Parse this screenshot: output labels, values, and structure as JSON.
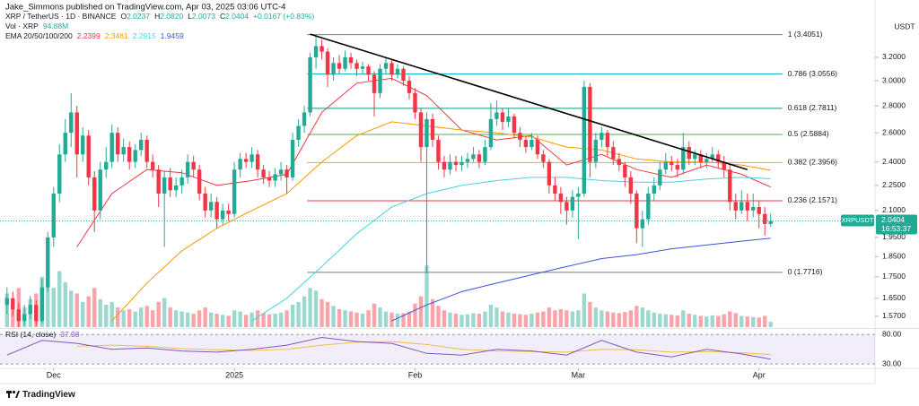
{
  "header": {
    "published": "Jake_Simmons published on TradingView.com, Apr 03, 2025 03:06 UTC-4",
    "symbol": "XRP / TetherUS · 1D · BINANCE",
    "ohlc": [
      [
        "O",
        "2.0237"
      ],
      [
        "H",
        "2.0820"
      ],
      [
        "L",
        "2.0073"
      ],
      [
        "C",
        "2.0404"
      ]
    ],
    "change": "+0.0167 (+0.83%)",
    "volume": [
      "Vol · XRP",
      "94.88M"
    ],
    "ema_label": "EMA 20/50/100/200",
    "rsi_label": "RSI (14, close)"
  },
  "price_tag": {
    "symbol": "XRPUSDT",
    "price": "2.0404",
    "countdown": "16:53:37"
  },
  "footer": {
    "brand": "TradingView"
  },
  "chart_data": {
    "type": "candlestick",
    "currency": "USDT",
    "log_scale": true,
    "ylim": [
      1.524,
      3.548
    ],
    "yticks": [
      {
        "value": 3.2,
        "label": "3.2000"
      },
      {
        "value": 3.0,
        "label": "3.0000"
      },
      {
        "value": 2.8,
        "label": "2.8000"
      },
      {
        "value": 2.6,
        "label": "2.6000"
      },
      {
        "value": 2.4,
        "label": "2.4000"
      },
      {
        "value": 2.25,
        "label": "2.2500"
      },
      {
        "value": 2.1,
        "label": "2.1000"
      },
      {
        "value": 1.95,
        "label": "1.9500"
      },
      {
        "value": 1.85,
        "label": "1.8500"
      },
      {
        "value": 1.75,
        "label": "1.7500"
      },
      {
        "value": 1.65,
        "label": "1.6500"
      },
      {
        "value": 1.57,
        "label": "1.5700"
      }
    ],
    "xlim": [
      -1.2,
      148.9
    ],
    "xticks": [
      {
        "value": 8,
        "label": "Dec"
      },
      {
        "value": 39,
        "label": "2025"
      },
      {
        "value": 70,
        "label": "Feb"
      },
      {
        "value": 98,
        "label": "Mar"
      },
      {
        "value": 129,
        "label": "Apr"
      }
    ],
    "up_color": "#22ab94",
    "down_color": "#f23645",
    "candles": [
      [
        1.62,
        1.7,
        1.58,
        1.65
      ],
      [
        1.65,
        1.68,
        1.57,
        1.6
      ],
      [
        1.6,
        1.63,
        1.52,
        1.55
      ],
      [
        1.55,
        1.62,
        1.53,
        1.58
      ],
      [
        1.58,
        1.66,
        1.56,
        1.62
      ],
      [
        1.62,
        1.64,
        1.53,
        1.55
      ],
      [
        1.55,
        1.74,
        1.54,
        1.7
      ],
      [
        1.7,
        1.98,
        1.68,
        1.95
      ],
      [
        1.95,
        2.24,
        1.9,
        2.2
      ],
      [
        2.2,
        2.52,
        2.15,
        2.45
      ],
      [
        2.45,
        2.7,
        2.4,
        2.6
      ],
      [
        2.6,
        2.9,
        2.5,
        2.75
      ],
      [
        2.75,
        2.8,
        2.3,
        2.45
      ],
      [
        2.45,
        2.64,
        2.4,
        2.58
      ],
      [
        2.58,
        2.62,
        2.25,
        2.3
      ],
      [
        2.3,
        2.34,
        1.98,
        2.1
      ],
      [
        2.1,
        2.4,
        2.05,
        2.35
      ],
      [
        2.35,
        2.5,
        2.3,
        2.4
      ],
      [
        2.4,
        2.66,
        2.36,
        2.6
      ],
      [
        2.6,
        2.64,
        2.4,
        2.45
      ],
      [
        2.45,
        2.56,
        2.4,
        2.5
      ],
      [
        2.5,
        2.54,
        2.35,
        2.4
      ],
      [
        2.4,
        2.52,
        2.36,
        2.48
      ],
      [
        2.48,
        2.6,
        2.44,
        2.55
      ],
      [
        2.55,
        2.58,
        2.36,
        2.4
      ],
      [
        2.4,
        2.45,
        2.3,
        2.35
      ],
      [
        2.35,
        2.38,
        2.12,
        2.2
      ],
      [
        2.2,
        2.34,
        1.9,
        2.3
      ],
      [
        2.3,
        2.36,
        2.18,
        2.22
      ],
      [
        2.22,
        2.3,
        2.18,
        2.25
      ],
      [
        2.25,
        2.35,
        2.2,
        2.3
      ],
      [
        2.3,
        2.45,
        2.26,
        2.4
      ],
      [
        2.4,
        2.44,
        2.3,
        2.35
      ],
      [
        2.35,
        2.38,
        2.16,
        2.2
      ],
      [
        2.2,
        2.24,
        2.06,
        2.1
      ],
      [
        2.1,
        2.2,
        2.06,
        2.15
      ],
      [
        2.15,
        2.18,
        2.0,
        2.05
      ],
      [
        2.05,
        2.14,
        2.02,
        2.1
      ],
      [
        2.1,
        2.14,
        2.04,
        2.08
      ],
      [
        2.08,
        2.4,
        2.06,
        2.35
      ],
      [
        2.35,
        2.46,
        2.3,
        2.42
      ],
      [
        2.42,
        2.46,
        2.36,
        2.4
      ],
      [
        2.4,
        2.5,
        2.36,
        2.45
      ],
      [
        2.45,
        2.48,
        2.3,
        2.35
      ],
      [
        2.35,
        2.38,
        2.26,
        2.3
      ],
      [
        2.3,
        2.34,
        2.24,
        2.28
      ],
      [
        2.28,
        2.36,
        2.24,
        2.32
      ],
      [
        2.32,
        2.4,
        2.28,
        2.35
      ],
      [
        2.35,
        2.38,
        2.2,
        2.3
      ],
      [
        2.3,
        2.6,
        2.28,
        2.55
      ],
      [
        2.55,
        2.7,
        2.5,
        2.65
      ],
      [
        2.65,
        2.8,
        2.6,
        2.75
      ],
      [
        2.75,
        3.24,
        2.72,
        3.2
      ],
      [
        3.2,
        3.4,
        3.1,
        3.3
      ],
      [
        3.3,
        3.36,
        3.18,
        3.25
      ],
      [
        3.25,
        3.28,
        2.95,
        3.05
      ],
      [
        3.05,
        3.2,
        3.0,
        3.15
      ],
      [
        3.15,
        3.22,
        3.06,
        3.1
      ],
      [
        3.1,
        3.26,
        3.08,
        3.2
      ],
      [
        3.2,
        3.24,
        3.1,
        3.15
      ],
      [
        3.15,
        3.18,
        3.04,
        3.1
      ],
      [
        3.1,
        3.16,
        3.06,
        3.12
      ],
      [
        3.12,
        3.14,
        3.0,
        3.05
      ],
      [
        3.05,
        3.08,
        2.72,
        2.9
      ],
      [
        2.9,
        3.14,
        2.86,
        3.1
      ],
      [
        3.1,
        3.2,
        3.06,
        3.15
      ],
      [
        3.15,
        3.18,
        3.0,
        3.05
      ],
      [
        3.05,
        3.14,
        3.02,
        3.1
      ],
      [
        3.1,
        3.12,
        2.96,
        3.0
      ],
      [
        3.0,
        3.04,
        2.85,
        2.9
      ],
      [
        2.9,
        2.94,
        2.7,
        2.75
      ],
      [
        2.75,
        2.78,
        2.4,
        2.5
      ],
      [
        2.5,
        2.75,
        1.77,
        2.7
      ],
      [
        2.7,
        2.74,
        2.5,
        2.55
      ],
      [
        2.55,
        2.58,
        2.35,
        2.4
      ],
      [
        2.4,
        2.44,
        2.3,
        2.35
      ],
      [
        2.35,
        2.45,
        2.32,
        2.4
      ],
      [
        2.4,
        2.44,
        2.34,
        2.38
      ],
      [
        2.38,
        2.44,
        2.34,
        2.4
      ],
      [
        2.4,
        2.46,
        2.36,
        2.42
      ],
      [
        2.42,
        2.5,
        2.4,
        2.45
      ],
      [
        2.45,
        2.48,
        2.36,
        2.4
      ],
      [
        2.4,
        2.55,
        2.38,
        2.5
      ],
      [
        2.5,
        2.82,
        2.48,
        2.7
      ],
      [
        2.7,
        2.84,
        2.65,
        2.75
      ],
      [
        2.75,
        2.78,
        2.62,
        2.68
      ],
      [
        2.68,
        2.78,
        2.64,
        2.72
      ],
      [
        2.72,
        2.74,
        2.56,
        2.6
      ],
      [
        2.6,
        2.64,
        2.5,
        2.55
      ],
      [
        2.55,
        2.58,
        2.46,
        2.5
      ],
      [
        2.5,
        2.6,
        2.48,
        2.55
      ],
      [
        2.55,
        2.58,
        2.42,
        2.45
      ],
      [
        2.45,
        2.48,
        2.36,
        2.4
      ],
      [
        2.4,
        2.42,
        2.2,
        2.25
      ],
      [
        2.25,
        2.3,
        2.16,
        2.2
      ],
      [
        2.2,
        2.24,
        2.08,
        2.15
      ],
      [
        2.15,
        2.18,
        2.02,
        2.1
      ],
      [
        2.1,
        2.22,
        2.06,
        2.18
      ],
      [
        2.18,
        2.24,
        1.94,
        2.2
      ],
      [
        2.2,
        3.0,
        2.18,
        2.95
      ],
      [
        2.95,
        2.98,
        2.3,
        2.4
      ],
      [
        2.4,
        2.6,
        2.36,
        2.55
      ],
      [
        2.55,
        2.64,
        2.5,
        2.6
      ],
      [
        2.6,
        2.62,
        2.44,
        2.5
      ],
      [
        2.5,
        2.54,
        2.38,
        2.42
      ],
      [
        2.42,
        2.46,
        2.34,
        2.38
      ],
      [
        2.38,
        2.4,
        2.24,
        2.3
      ],
      [
        2.3,
        2.34,
        2.14,
        2.2
      ],
      [
        2.2,
        2.22,
        1.92,
        2.0
      ],
      [
        2.0,
        2.1,
        1.9,
        2.05
      ],
      [
        2.05,
        2.24,
        2.02,
        2.2
      ],
      [
        2.2,
        2.3,
        2.16,
        2.25
      ],
      [
        2.25,
        2.4,
        2.22,
        2.35
      ],
      [
        2.35,
        2.46,
        2.32,
        2.4
      ],
      [
        2.4,
        2.44,
        2.34,
        2.38
      ],
      [
        2.38,
        2.42,
        2.3,
        2.35
      ],
      [
        2.35,
        2.6,
        2.32,
        2.5
      ],
      [
        2.5,
        2.54,
        2.38,
        2.42
      ],
      [
        2.42,
        2.48,
        2.38,
        2.45
      ],
      [
        2.45,
        2.48,
        2.36,
        2.4
      ],
      [
        2.4,
        2.46,
        2.36,
        2.42
      ],
      [
        2.42,
        2.5,
        2.4,
        2.45
      ],
      [
        2.45,
        2.48,
        2.36,
        2.4
      ],
      [
        2.4,
        2.44,
        2.3,
        2.35
      ],
      [
        2.35,
        2.38,
        2.1,
        2.15
      ],
      [
        2.15,
        2.2,
        2.05,
        2.1
      ],
      [
        2.1,
        2.22,
        2.08,
        2.15
      ],
      [
        2.15,
        2.2,
        2.04,
        2.1
      ],
      [
        2.1,
        2.2,
        2.06,
        2.12
      ],
      [
        2.12,
        2.16,
        2.0,
        2.08
      ],
      [
        2.08,
        2.12,
        1.96,
        2.0237
      ],
      [
        2.0237,
        2.082,
        2.0073,
        2.0404
      ]
    ],
    "volume": {
      "ylim": [
        0,
        1600
      ],
      "values": [
        600,
        450,
        700,
        350,
        500,
        600,
        900,
        850,
        700,
        1000,
        800,
        650,
        600,
        450,
        550,
        700,
        500,
        400,
        450,
        350,
        300,
        320,
        280,
        350,
        380,
        300,
        450,
        520,
        350,
        300,
        280,
        260,
        240,
        300,
        350,
        260,
        240,
        220,
        200,
        300,
        280,
        220,
        260,
        300,
        250,
        230,
        240,
        260,
        300,
        400,
        450,
        550,
        700,
        650,
        500,
        450,
        380,
        320,
        300,
        280,
        260,
        240,
        300,
        420,
        350,
        280,
        260,
        240,
        250,
        280,
        420,
        550,
        1100,
        500,
        380,
        300,
        260,
        240,
        220,
        230,
        250,
        240,
        280,
        400,
        350,
        280,
        260,
        240,
        230,
        220,
        240,
        260,
        280,
        350,
        300,
        320,
        300,
        280,
        300,
        600,
        450,
        350,
        300,
        280,
        260,
        250,
        270,
        300,
        380,
        350,
        300,
        260,
        240,
        230,
        220,
        210,
        300,
        240,
        220,
        200,
        190,
        210,
        200,
        230,
        280,
        250,
        200,
        190,
        180,
        170,
        200,
        94.88
      ]
    },
    "ema": {
      "x": [
        0,
        6,
        12,
        18,
        24,
        30,
        36,
        42,
        48,
        54,
        60,
        66,
        72,
        78,
        84,
        90,
        96,
        102,
        108,
        114,
        120,
        126,
        131
      ],
      "series": [
        {
          "color": "#f23645",
          "values": [
            null,
            null,
            1.9,
            2.2,
            2.35,
            2.33,
            2.25,
            2.28,
            2.32,
            2.75,
            2.98,
            3.02,
            2.88,
            2.62,
            2.55,
            2.58,
            2.38,
            2.45,
            2.35,
            2.3,
            2.38,
            2.32,
            2.2399
          ]
        },
        {
          "color": "#ff9800",
          "values": [
            null,
            null,
            null,
            1.55,
            1.72,
            1.88,
            2.0,
            2.1,
            2.2,
            2.4,
            2.58,
            2.68,
            2.65,
            2.62,
            2.6,
            2.57,
            2.5,
            2.48,
            2.42,
            2.4,
            2.4,
            2.38,
            2.3461
          ]
        },
        {
          "color": "#4dd0e1",
          "values": [
            null,
            null,
            null,
            null,
            null,
            null,
            null,
            1.55,
            1.65,
            1.8,
            1.97,
            2.12,
            2.2,
            2.25,
            2.28,
            2.3,
            2.3,
            2.28,
            2.27,
            2.27,
            2.29,
            2.3,
            2.2915
          ]
        },
        {
          "color": "#3f51d5",
          "values": [
            null,
            null,
            null,
            null,
            null,
            null,
            null,
            null,
            null,
            null,
            null,
            1.55,
            1.62,
            1.68,
            1.72,
            1.76,
            1.8,
            1.84,
            1.86,
            1.89,
            1.91,
            1.93,
            1.9459
          ]
        }
      ]
    },
    "fib": {
      "x_range": [
        51.5,
        133
      ],
      "levels": [
        {
          "label": "1 (3.4051)",
          "price": 3.4051,
          "color": "#787b86"
        },
        {
          "label": "0.786 (3.0556)",
          "price": 3.0556,
          "color": "#00acc1"
        },
        {
          "label": "0.618 (2.7811)",
          "price": 2.7811,
          "color": "#089981"
        },
        {
          "label": "0.5 (2.5884)",
          "price": 2.5884,
          "color": "#4caf50"
        },
        {
          "label": "0.382 (2.3956)",
          "price": 2.3956,
          "color": "#f5a623"
        },
        {
          "label": "0.236 (2.1571)",
          "price": 2.1571,
          "color": "#f23645"
        },
        {
          "label": "0 (1.7716)",
          "price": 1.7716,
          "color": "#787b86"
        }
      ]
    },
    "trendline": {
      "color": "#000000",
      "points": [
        [
          52,
          3.41
        ],
        [
          127,
          2.35
        ]
      ]
    },
    "rsi": {
      "ylim": [
        24,
        88
      ],
      "levels": [
        {
          "value": 80,
          "label": "80.00"
        },
        {
          "value": 30,
          "label": "30.00"
        }
      ],
      "x": [
        0,
        6,
        12,
        18,
        24,
        30,
        36,
        42,
        48,
        54,
        60,
        66,
        72,
        78,
        84,
        90,
        96,
        102,
        108,
        114,
        120,
        126,
        131
      ],
      "color": "#7e57c2",
      "values": [
        45,
        70,
        65,
        55,
        57,
        52,
        50,
        55,
        62,
        75,
        68,
        65,
        48,
        45,
        55,
        52,
        45,
        70,
        50,
        42,
        55,
        47,
        37.98
      ],
      "ma_color": "#f0c040",
      "ma": [
        null,
        null,
        60,
        62,
        60,
        56,
        54,
        53,
        55,
        62,
        67,
        68,
        63,
        55,
        52,
        51,
        50,
        55,
        54,
        50,
        51,
        49,
        46
      ]
    }
  }
}
